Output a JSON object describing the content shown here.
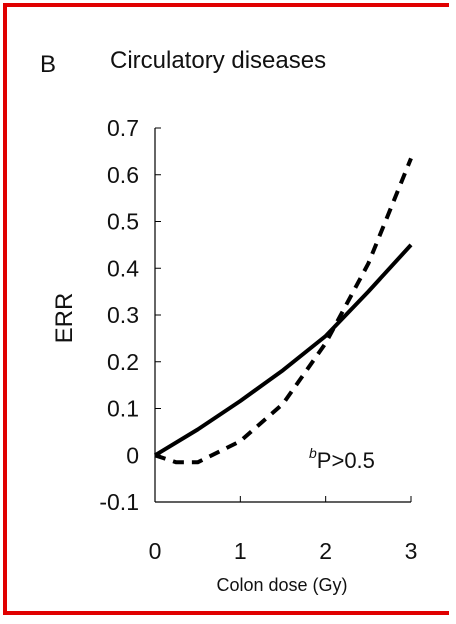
{
  "frame": {
    "border_color": "#e00000"
  },
  "chart_data": {
    "type": "line",
    "panel_label": "B",
    "title": "Circulatory diseases",
    "xlabel": "Colon dose (Gy)",
    "ylabel": "ERR",
    "xlim": [
      0,
      3
    ],
    "ylim": [
      -0.1,
      0.7
    ],
    "xticks": [
      "0",
      "1",
      "2",
      "3"
    ],
    "yticks": [
      "0.7",
      "0.6",
      "0.5",
      "0.4",
      "0.3",
      "0.2",
      "0.1",
      "0",
      "-0.1"
    ],
    "annotation": {
      "superscript": "b",
      "text": "P>0.5"
    },
    "series": [
      {
        "style": "solid",
        "color": "#000000",
        "x": [
          0,
          0.5,
          1,
          1.5,
          2,
          2.5,
          3
        ],
        "y": [
          0,
          0.055,
          0.116,
          0.182,
          0.255,
          0.35,
          0.45
        ]
      },
      {
        "style": "dashed",
        "color": "#000000",
        "x": [
          0,
          0.25,
          0.5,
          1,
          1.5,
          2,
          2.5,
          3
        ],
        "y": [
          0,
          -0.015,
          -0.015,
          0.03,
          0.11,
          0.24,
          0.41,
          0.635
        ]
      }
    ]
  }
}
